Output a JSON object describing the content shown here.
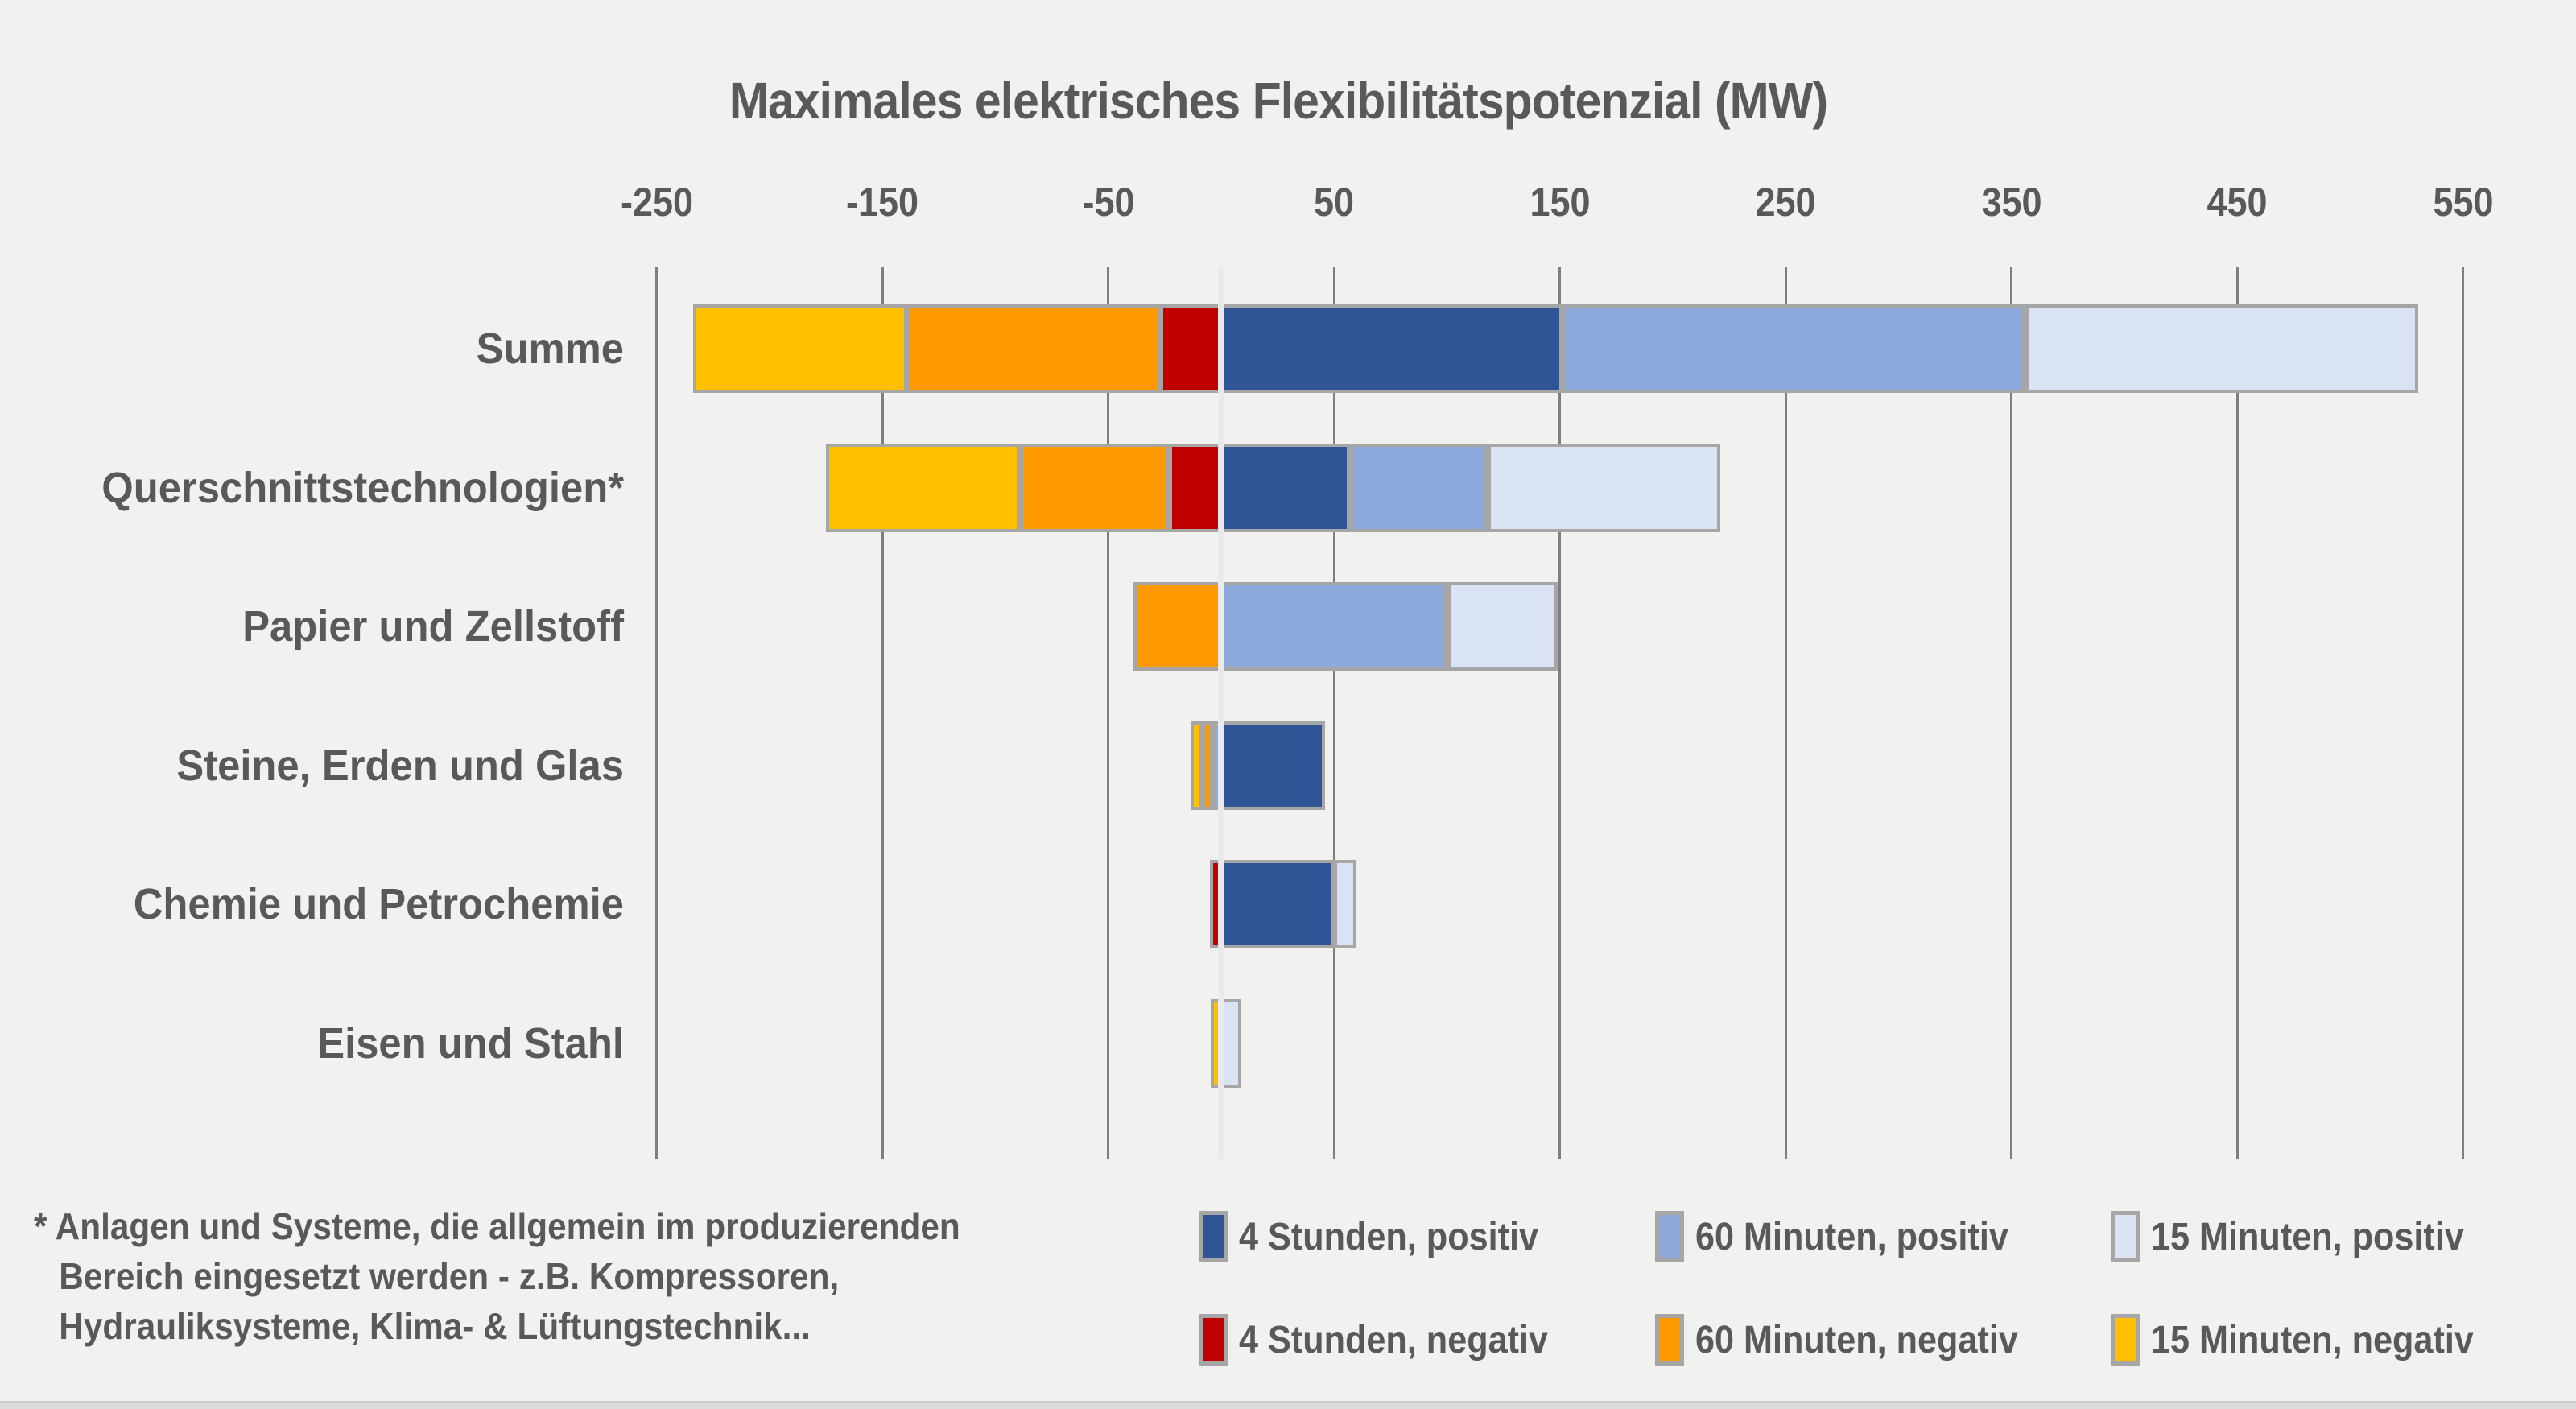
{
  "colors": {
    "background": "#F1F1F0",
    "text": "#595959",
    "gridline": "#7F7F7F",
    "zero_line": "#EAEAEA",
    "bar_border": "#A6A6A6",
    "series": {
      "4h_pos": "#2F5597",
      "60min_pos": "#8EA9DB",
      "15min_pos": "#DAE3F3",
      "4h_neg": "#C00000",
      "60min_neg": "#FF9900",
      "15min_neg": "#FFC000"
    }
  },
  "chart_data": {
    "type": "bar",
    "orientation": "horizontal",
    "stacked": true,
    "diverging": true,
    "title": "Maximales elektrisches Flexibilitätspotenzial (MW)",
    "unit": "MW",
    "axis": {
      "ticks": [
        -250,
        -150,
        -50,
        50,
        150,
        250,
        350,
        450,
        550
      ],
      "min": -250,
      "max": 550,
      "vertical_gridlines": true,
      "zero_line_highlighted": true
    },
    "categories": [
      "Summe",
      "Querschnittstechnologien*",
      "Papier und Zellstoff",
      "Steine, Erden und Glas",
      "Chemie und Petrochemie",
      "Eisen und Stahl"
    ],
    "rows": [
      {
        "category": "Summe",
        "segments": [
          {
            "series": "15 Minuten, negativ",
            "color": "15min_neg",
            "value": -95
          },
          {
            "series": "60 Minuten, negativ",
            "color": "60min_neg",
            "value": -112
          },
          {
            "series": "4 Stunden, negativ",
            "color": "4h_neg",
            "value": -27
          },
          {
            "series": "4 Stunden, positiv",
            "color": "4h_pos",
            "value": 151
          },
          {
            "series": "60 Minuten, positiv",
            "color": "60min_pos",
            "value": 205
          },
          {
            "series": "15 Minuten, positiv",
            "color": "15min_pos",
            "value": 174
          }
        ]
      },
      {
        "category": "Querschnittstechnologien*",
        "segments": [
          {
            "series": "15 Minuten, negativ",
            "color": "15min_neg",
            "value": -86
          },
          {
            "series": "60 Minuten, negativ",
            "color": "60min_neg",
            "value": -66
          },
          {
            "series": "4 Stunden, negativ",
            "color": "4h_neg",
            "value": -23
          },
          {
            "series": "4 Stunden, positiv",
            "color": "4h_pos",
            "value": 57
          },
          {
            "series": "60 Minuten, positiv",
            "color": "60min_pos",
            "value": 61
          },
          {
            "series": "15 Minuten, positiv",
            "color": "15min_pos",
            "value": 103
          }
        ]
      },
      {
        "category": "Papier und Zellstoff",
        "segments": [
          {
            "series": "60 Minuten, negativ",
            "color": "60min_neg",
            "value": -39
          },
          {
            "series": "60 Minuten, positiv",
            "color": "60min_pos",
            "value": 100
          },
          {
            "series": "15 Minuten, positiv",
            "color": "15min_pos",
            "value": 49
          }
        ]
      },
      {
        "category": "Steine, Erden und Glas",
        "segments": [
          {
            "series": "15 Minuten, negativ",
            "color": "15min_neg",
            "value": -5
          },
          {
            "series": "60 Minuten, negativ",
            "color": "60min_neg",
            "value": -4.5
          },
          {
            "series": "60 Minuten, positiv",
            "color": "60min_pos",
            "value": -4
          },
          {
            "series": "4 Stunden, positiv",
            "color": "4h_pos",
            "value": 46
          }
        ]
      },
      {
        "category": "Chemie und Petrochemie",
        "segments": [
          {
            "series": "4 Stunden, negativ",
            "color": "4h_neg",
            "value": -5
          },
          {
            "series": "4 Stunden, positiv",
            "color": "4h_pos",
            "value": 50
          },
          {
            "series": "15 Minuten, positiv",
            "color": "15min_pos",
            "value": 10
          }
        ]
      },
      {
        "category": "Eisen und Stahl",
        "segments": [
          {
            "series": "15 Minuten, negativ",
            "color": "15min_neg",
            "value": -4.5
          },
          {
            "series": "15 Minuten, positiv",
            "color": "15min_pos",
            "value": 9
          }
        ]
      }
    ],
    "legend": {
      "position": "bottom-right",
      "rows": [
        [
          {
            "label": "4 Stunden, positiv",
            "color": "4h_pos"
          },
          {
            "label": "60 Minuten, positiv",
            "color": "60min_pos"
          },
          {
            "label": "15 Minuten, positiv",
            "color": "15min_pos"
          }
        ],
        [
          {
            "label": "4 Stunden, negativ",
            "color": "4h_neg"
          },
          {
            "label": "60 Minuten, negativ",
            "color": "60min_neg"
          },
          {
            "label": "15 Minuten, negativ",
            "color": "15min_neg"
          }
        ]
      ]
    }
  },
  "footnote": {
    "lines": [
      "* Anlagen und Systeme, die allgemein im produzierenden",
      "Bereich eingesetzt werden - z.B. Kompressoren,",
      "Hydrauliksysteme, Klima- & Lüftungstechnik..."
    ]
  }
}
